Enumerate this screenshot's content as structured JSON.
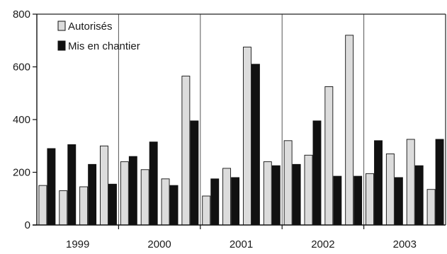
{
  "chart_data": {
    "type": "bar",
    "title": "",
    "xlabel": "",
    "ylabel": "",
    "ylim": [
      0,
      800
    ],
    "yticks": [
      "0",
      "200",
      "400",
      "600",
      "800"
    ],
    "grid": "vertical lines at year boundaries",
    "legend_position": "top-left",
    "categories": [
      "1999-1",
      "1999-2",
      "1999-3",
      "1999-4",
      "2000-1",
      "2000-2",
      "2000-3",
      "2000-4",
      "2001-1",
      "2001-2",
      "2001-3",
      "2001-4",
      "2002-1",
      "2002-2",
      "2002-3",
      "2002-4",
      "2003-1",
      "2003-2",
      "2003-3",
      "2003-4"
    ],
    "year_labels": [
      "1999",
      "2000",
      "2001",
      "2002",
      "2003"
    ],
    "series": [
      {
        "name": "Autorisés",
        "color": "#dcdcdc",
        "values": [
          150,
          130,
          145,
          300,
          240,
          210,
          175,
          565,
          110,
          215,
          675,
          240,
          320,
          265,
          525,
          720,
          195,
          270,
          325,
          135
        ]
      },
      {
        "name": "Mis en chantier",
        "color": "#111111",
        "values": [
          290,
          305,
          230,
          155,
          260,
          315,
          150,
          395,
          175,
          180,
          610,
          225,
          230,
          395,
          185,
          185,
          320,
          180,
          225,
          325
        ]
      }
    ]
  }
}
